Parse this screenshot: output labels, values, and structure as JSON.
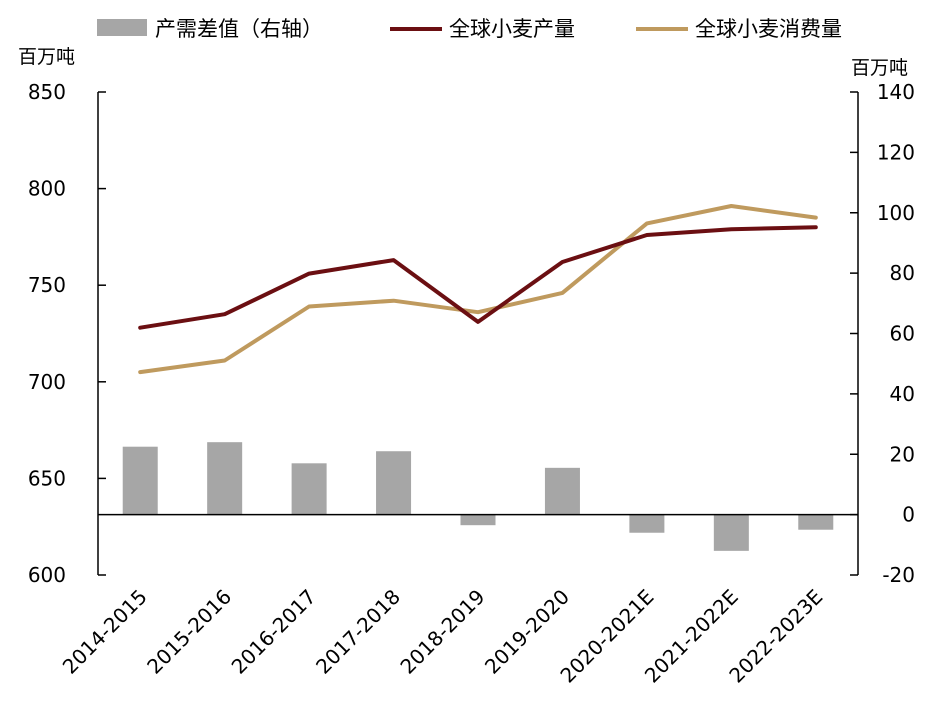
{
  "chart_data": {
    "type": "bar+line",
    "categories": [
      "2014-2015",
      "2015-2016",
      "2016-2017",
      "2017-2018",
      "2018-2019",
      "2019-2020",
      "2020-2021E",
      "2021-2022E",
      "2022-2023E"
    ],
    "left_axis": {
      "unit": "百万吨",
      "ylim": [
        600,
        850
      ],
      "ticks": [
        600,
        650,
        700,
        750,
        800,
        850
      ]
    },
    "right_axis": {
      "unit": "百万吨",
      "ylim": [
        -20,
        140
      ],
      "ticks": [
        -20,
        0,
        20,
        40,
        60,
        80,
        100,
        120,
        140
      ]
    },
    "series": [
      {
        "name": "产需差值（右轴）",
        "kind": "bar",
        "axis": "right",
        "color": "#a6a6a6",
        "values": [
          22.5,
          24,
          17,
          21,
          -3.5,
          15.5,
          -6,
          -12,
          -5
        ]
      },
      {
        "name": "全球小麦产量",
        "kind": "line",
        "axis": "left",
        "color": "#6b0f12",
        "values": [
          728,
          735,
          756,
          763,
          731,
          762,
          776,
          779,
          780
        ]
      },
      {
        "name": "全球小麦消费量",
        "kind": "line",
        "axis": "left",
        "color": "#bf9a5e",
        "values": [
          705,
          711,
          739,
          742,
          736,
          746,
          782,
          791,
          785
        ]
      }
    ],
    "legend": "top",
    "grid": false
  }
}
